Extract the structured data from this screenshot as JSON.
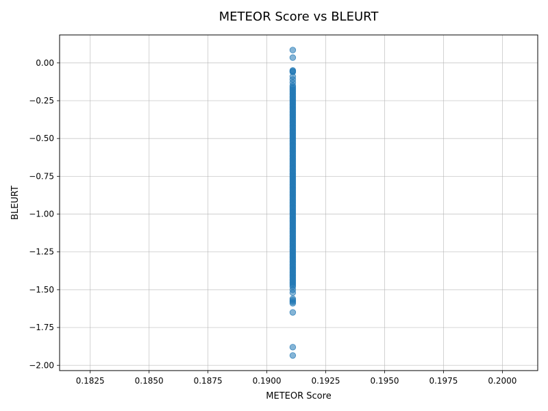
{
  "chart_data": {
    "type": "scatter",
    "title": "METEOR Score vs BLEURT",
    "xlabel": "METEOR Score",
    "ylabel": "BLEURT",
    "xlim": [
      0.1812,
      0.2015
    ],
    "ylim": [
      -2.035,
      0.185
    ],
    "xticks": [
      0.1825,
      0.185,
      0.1875,
      0.19,
      0.1925,
      0.195,
      0.1975,
      0.2
    ],
    "xtick_labels": [
      "0.1825",
      "0.1850",
      "0.1875",
      "0.1900",
      "0.1925",
      "0.1950",
      "0.1975",
      "0.2000"
    ],
    "yticks": [
      0.0,
      -0.25,
      -0.5,
      -0.75,
      -1.0,
      -1.25,
      -1.5,
      -1.75,
      -2.0
    ],
    "ytick_labels": [
      "0.00",
      "−0.25",
      "−0.50",
      "−0.75",
      "−1.00",
      "−1.25",
      "−1.50",
      "−1.75",
      "−2.00"
    ],
    "grid": true,
    "marker_color": "#1f77b4",
    "marker_alpha": 0.55,
    "series": [
      {
        "x_constant": 0.1911,
        "y": [
          0.085,
          0.035,
          -0.05,
          -0.055,
          -0.06,
          -0.09,
          -0.11,
          -0.13,
          -0.15,
          -0.16,
          -0.17,
          -0.18,
          -0.19,
          -0.2,
          -0.21,
          -0.22,
          -0.23,
          -0.24,
          -0.25,
          -0.26,
          -0.27,
          -0.28,
          -0.29,
          -0.3,
          -0.31,
          -0.32,
          -0.33,
          -0.34,
          -0.35,
          -0.36,
          -0.37,
          -0.38,
          -0.39,
          -0.4,
          -0.41,
          -0.42,
          -0.43,
          -0.44,
          -0.45,
          -0.46,
          -0.47,
          -0.48,
          -0.49,
          -0.5,
          -0.51,
          -0.52,
          -0.53,
          -0.54,
          -0.55,
          -0.56,
          -0.57,
          -0.58,
          -0.59,
          -0.6,
          -0.61,
          -0.62,
          -0.63,
          -0.64,
          -0.65,
          -0.66,
          -0.67,
          -0.68,
          -0.69,
          -0.7,
          -0.71,
          -0.72,
          -0.73,
          -0.74,
          -0.75,
          -0.76,
          -0.77,
          -0.78,
          -0.79,
          -0.8,
          -0.81,
          -0.82,
          -0.83,
          -0.84,
          -0.85,
          -0.86,
          -0.87,
          -0.88,
          -0.89,
          -0.9,
          -0.91,
          -0.92,
          -0.93,
          -0.94,
          -0.95,
          -0.96,
          -0.97,
          -0.98,
          -0.99,
          -1.0,
          -1.01,
          -1.02,
          -1.03,
          -1.04,
          -1.05,
          -1.06,
          -1.07,
          -1.08,
          -1.09,
          -1.1,
          -1.11,
          -1.12,
          -1.13,
          -1.14,
          -1.15,
          -1.16,
          -1.17,
          -1.18,
          -1.19,
          -1.2,
          -1.21,
          -1.22,
          -1.23,
          -1.24,
          -1.25,
          -1.26,
          -1.27,
          -1.28,
          -1.29,
          -1.3,
          -1.31,
          -1.32,
          -1.33,
          -1.34,
          -1.35,
          -1.36,
          -1.37,
          -1.38,
          -1.39,
          -1.4,
          -1.41,
          -1.42,
          -1.43,
          -1.44,
          -1.45,
          -1.46,
          -1.47,
          -1.48,
          -1.5,
          -1.52,
          -1.56,
          -1.57,
          -1.58,
          -1.59,
          -1.65,
          -1.88,
          -1.935
        ]
      }
    ]
  }
}
